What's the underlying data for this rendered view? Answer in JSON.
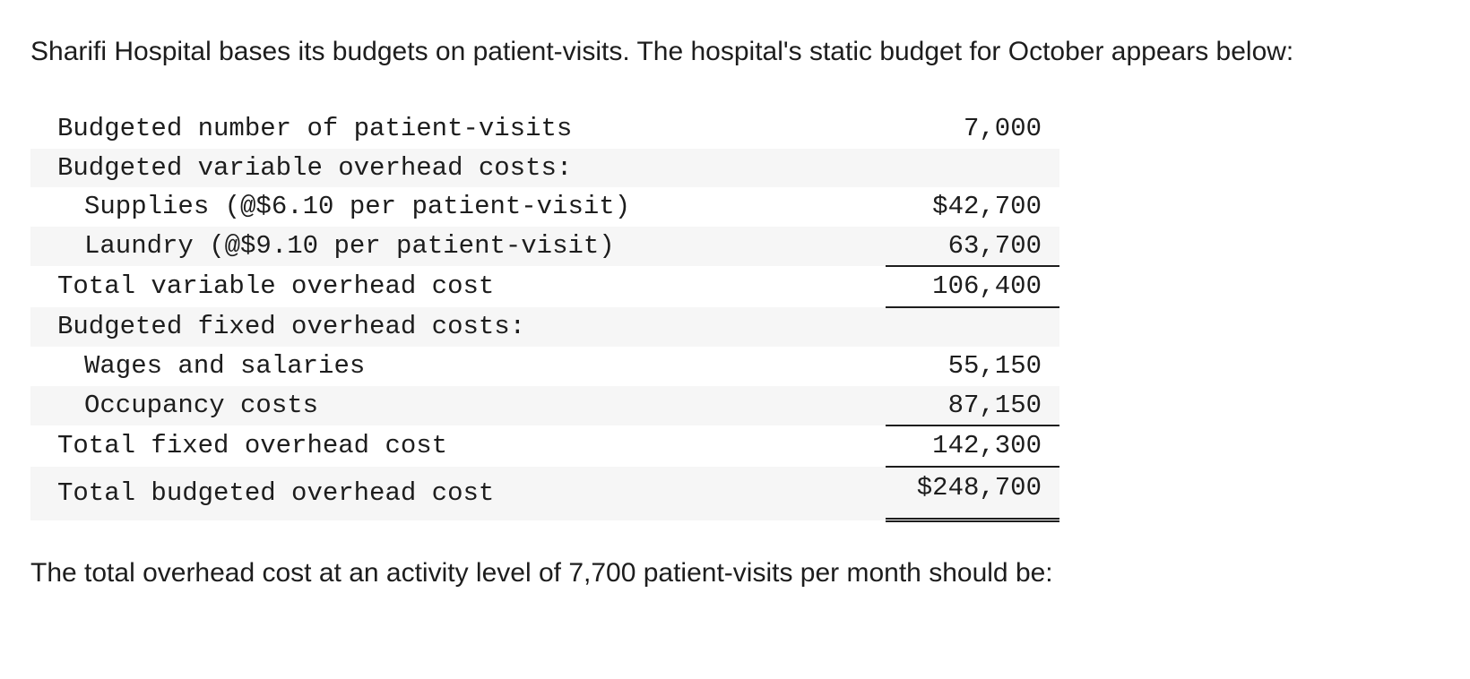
{
  "problem": {
    "intro": "Sharifi Hospital bases its budgets on patient-visits. The hospital's static budget for October appears below:",
    "question": "The total overhead cost at an activity level of 7,700 patient-visits per month should be:"
  },
  "budget": {
    "rows": [
      {
        "label": "Budgeted number of patient-visits",
        "amount": "7,000"
      },
      {
        "label": "Budgeted variable overhead costs:",
        "amount": ""
      },
      {
        "label": "Supplies (@$6.10 per patient-visit)",
        "amount": "$42,700"
      },
      {
        "label": "Laundry (@$9.10 per patient-visit)",
        "amount": "63,700"
      },
      {
        "label": "Total variable overhead cost",
        "amount": "106,400"
      },
      {
        "label": "Budgeted fixed overhead costs:",
        "amount": ""
      },
      {
        "label": "Wages and salaries",
        "amount": "55,150"
      },
      {
        "label": "Occupancy costs",
        "amount": "87,150"
      },
      {
        "label": "Total fixed overhead cost",
        "amount": "142,300"
      },
      {
        "label": "Total budgeted overhead cost",
        "amount": "$248,700"
      }
    ]
  }
}
